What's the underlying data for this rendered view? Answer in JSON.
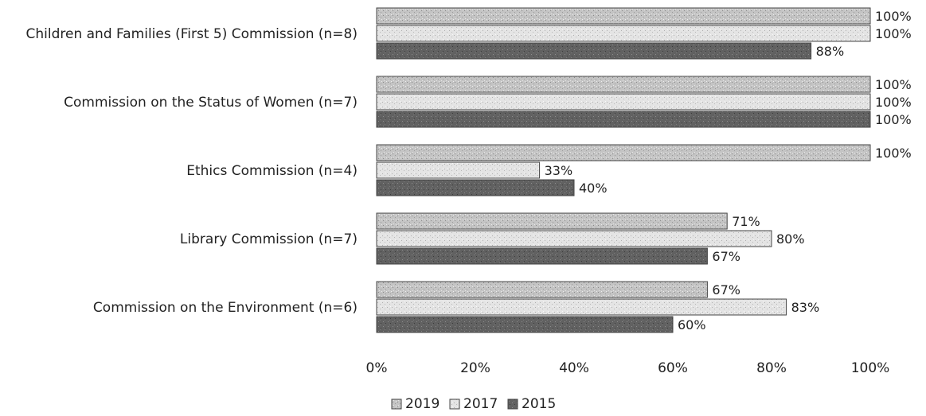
{
  "colors": {
    "s2019_fill": "#c2c2c2",
    "s2017_fill": "#e2e2e2",
    "s2015_fill": "#5f5f5f",
    "bar_stroke": "#444444",
    "text": "#222222"
  },
  "chart_data": {
    "type": "bar",
    "orientation": "horizontal",
    "categories": [
      "Children and Families (First 5) Commission (n=8)",
      "Commission on the Status of Women (n=7)",
      "Ethics Commission (n=4)",
      "Library Commission (n=7)",
      "Commission on the Environment (n=6)"
    ],
    "series": [
      {
        "name": "2019",
        "values": [
          100,
          100,
          100,
          71,
          67
        ],
        "labels": [
          "100%",
          "100%",
          "100%",
          "71%",
          "67%"
        ]
      },
      {
        "name": "2017",
        "values": [
          100,
          100,
          33,
          80,
          83
        ],
        "labels": [
          "100%",
          "100%",
          "33%",
          "80%",
          "83%"
        ]
      },
      {
        "name": "2015",
        "values": [
          88,
          100,
          40,
          67,
          60
        ],
        "labels": [
          "88%",
          "100%",
          "40%",
          "67%",
          "60%"
        ]
      }
    ],
    "x_ticks": [
      "0%",
      "20%",
      "40%",
      "60%",
      "80%",
      "100%"
    ],
    "xlim": [
      0,
      100
    ],
    "grid": false,
    "legend_position": "bottom"
  }
}
